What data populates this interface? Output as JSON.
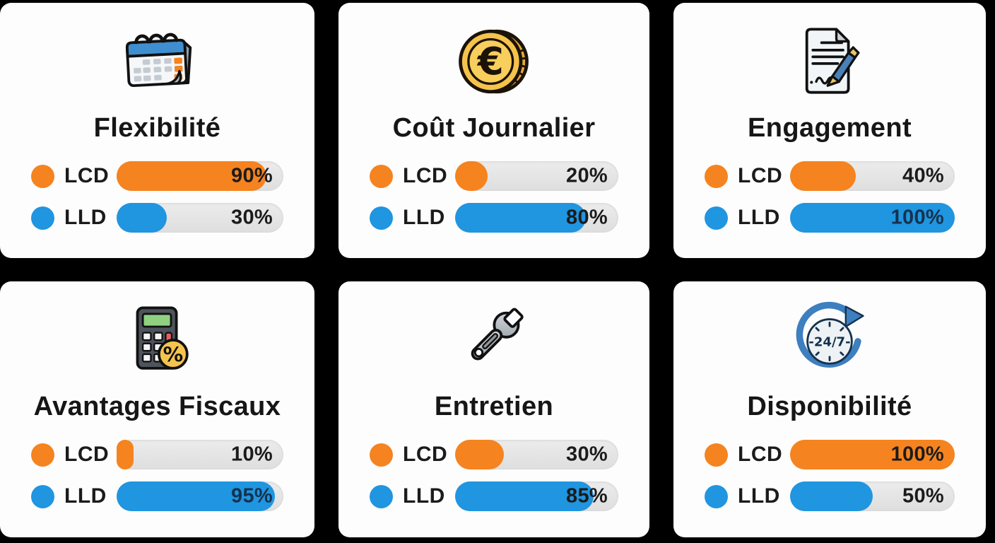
{
  "page": {
    "background": "#000000",
    "card_bg": "#fdfdfd",
    "title_color": "#161616"
  },
  "legend": {
    "lcd_color": "#F5831F",
    "lld_color": "#2095E0",
    "track_color": "#e5e5e5"
  },
  "chart_data": {
    "type": "bar",
    "categories": [
      "Flexibilité",
      "Coût Journalier",
      "Engagement",
      "Avantages Fiscaux",
      "Entretien",
      "Disponibilité"
    ],
    "series": [
      {
        "name": "LCD",
        "color": "#F5831F",
        "values": [
          90,
          20,
          40,
          10,
          30,
          100
        ]
      },
      {
        "name": "LLD",
        "color": "#2095E0",
        "values": [
          30,
          80,
          100,
          95,
          85,
          50
        ]
      }
    ],
    "title": "",
    "xlabel": "",
    "ylabel": "",
    "ylim": [
      0,
      100
    ],
    "legend_position": "per-row-left",
    "grid": false
  },
  "cards": [
    {
      "title": "Flexibilité",
      "icon": "calendar-icon",
      "rows": [
        {
          "label": "LCD",
          "value": "90%",
          "pct": 90,
          "color": "#F5831F",
          "value_color": "#1b1b1b"
        },
        {
          "label": "LLD",
          "value": "30%",
          "pct": 30,
          "color": "#2095E0",
          "value_color": "#1b1b1b"
        }
      ]
    },
    {
      "title": "Coût Journalier",
      "icon": "euro-coin-icon",
      "icon_glyph": "€",
      "rows": [
        {
          "label": "LCD",
          "value": "20%",
          "pct": 20,
          "color": "#F5831F",
          "value_color": "#1b1b1b"
        },
        {
          "label": "LLD",
          "value": "80%",
          "pct": 80,
          "color": "#2095E0",
          "value_color": "#1b1b1b"
        }
      ]
    },
    {
      "title": "Engagement",
      "icon": "contract-signing-icon",
      "rows": [
        {
          "label": "LCD",
          "value": "40%",
          "pct": 40,
          "color": "#F5831F",
          "value_color": "#1b1b1b"
        },
        {
          "label": "LLD",
          "value": "100%",
          "pct": 100,
          "color": "#2095E0",
          "value_color": "#14324E"
        }
      ]
    },
    {
      "title": "Avantages Fiscaux",
      "icon": "calculator-percent-icon",
      "icon_glyph": "%",
      "rows": [
        {
          "label": "LCD",
          "value": "10%",
          "pct": 10,
          "color": "#F5831F",
          "value_color": "#1b1b1b"
        },
        {
          "label": "LLD",
          "value": "95%",
          "pct": 95,
          "color": "#2095E0",
          "value_color": "#14324E"
        }
      ]
    },
    {
      "title": "Entretien",
      "icon": "wrench-icon",
      "rows": [
        {
          "label": "LCD",
          "value": "30%",
          "pct": 30,
          "color": "#F5831F",
          "value_color": "#1b1b1b"
        },
        {
          "label": "LLD",
          "value": "85%",
          "pct": 85,
          "color": "#2095E0",
          "value_color": "#1b1b1b"
        }
      ]
    },
    {
      "title": "Disponibilité",
      "icon": "clock-24-7-icon",
      "icon_text": "-24/7-",
      "rows": [
        {
          "label": "LCD",
          "value": "100%",
          "pct": 100,
          "color": "#F5831F",
          "value_color": "#1b1b1b"
        },
        {
          "label": "LLD",
          "value": "50%",
          "pct": 50,
          "color": "#2095E0",
          "value_color": "#1b1b1b"
        }
      ]
    }
  ]
}
